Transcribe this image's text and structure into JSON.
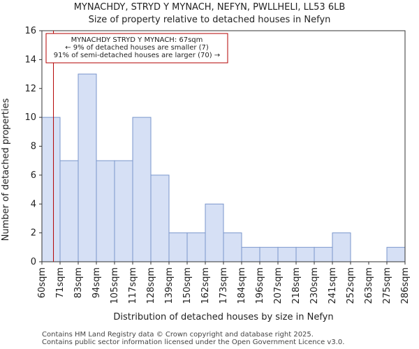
{
  "chart_data": {
    "type": "bar",
    "title": "MYNACHDY, STRYD Y MYNACH, NEFYN, PWLLHELI, LL53 6LB",
    "subtitle": "Size of property relative to detached houses in Nefyn",
    "xlabel": "Distribution of detached houses by size in Nefyn",
    "ylabel": "Number of detached properties",
    "bin_edges_labels": [
      "60sqm",
      "71sqm",
      "83sqm",
      "94sqm",
      "105sqm",
      "117sqm",
      "128sqm",
      "139sqm",
      "150sqm",
      "162sqm",
      "173sqm",
      "184sqm",
      "196sqm",
      "207sqm",
      "218sqm",
      "230sqm",
      "241sqm",
      "252sqm",
      "263sqm",
      "275sqm",
      "286sqm"
    ],
    "values": [
      10,
      7,
      13,
      7,
      7,
      10,
      6,
      2,
      2,
      4,
      2,
      1,
      1,
      1,
      1,
      1,
      2,
      0,
      0,
      1
    ],
    "ylim": [
      0,
      16
    ],
    "yticks": [
      0,
      2,
      4,
      6,
      8,
      10,
      12,
      14,
      16
    ],
    "bar_color": "#d6e0f5",
    "bar_edge_color": "#7a96cc",
    "marker": {
      "value_sqm": 67,
      "color": "#b30000",
      "lines": [
        "MYNACHDY STRYD Y MYNACH: 67sqm",
        "← 9% of detached houses are smaller (7)",
        "91% of semi-detached houses are larger (70) →"
      ]
    },
    "footer": [
      "Contains HM Land Registry data © Crown copyright and database right 2025.",
      "Contains public sector information licensed under the Open Government Licence v3.0."
    ]
  }
}
